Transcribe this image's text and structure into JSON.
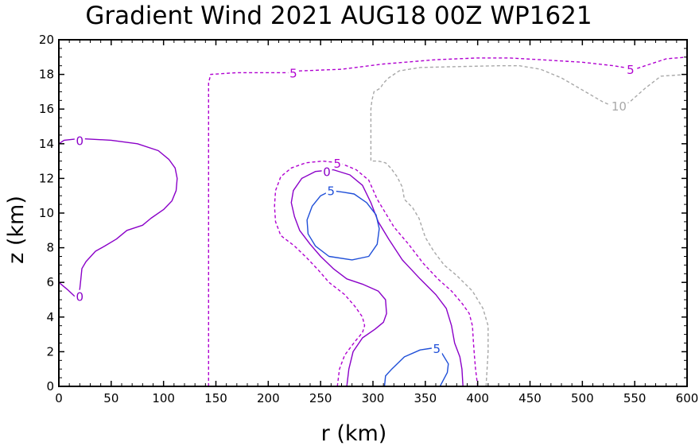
{
  "chart_data": {
    "type": "contour",
    "title": "Gradient Wind 2021 AUG18 00Z  WP1621",
    "xlabel": "r (km)",
    "ylabel": "z (km)",
    "xlim": [
      0,
      600
    ],
    "ylim": [
      0,
      20
    ],
    "xticks": [
      "0",
      "50",
      "100",
      "150",
      "200",
      "250",
      "300",
      "350",
      "400",
      "450",
      "500",
      "550",
      "600"
    ],
    "yticks": [
      "0",
      "2",
      "4",
      "6",
      "8",
      "10",
      "12",
      "14",
      "16",
      "18",
      "20"
    ],
    "grid": false,
    "colors": {
      "positive": "#1f4fd8",
      "zero": "#8a00c8",
      "neg5": "#b000d0",
      "neg10": "#a8a8a8"
    },
    "contours": [
      {
        "level": 0,
        "label": "0",
        "style": "solid",
        "color": "#8a00c8",
        "points": [
          [
            0,
            14.0
          ],
          [
            5,
            14.2
          ],
          [
            20,
            14.3
          ],
          [
            50,
            14.2
          ],
          [
            75,
            14.0
          ],
          [
            95,
            13.6
          ],
          [
            105,
            13.1
          ],
          [
            111,
            12.6
          ],
          [
            113,
            12.0
          ],
          [
            112,
            11.3
          ],
          [
            108,
            10.7
          ],
          [
            100,
            10.2
          ],
          [
            88,
            9.7
          ],
          [
            80,
            9.3
          ],
          [
            65,
            9.0
          ],
          [
            55,
            8.5
          ],
          [
            44,
            8.1
          ],
          [
            35,
            7.8
          ],
          [
            26,
            7.2
          ],
          [
            22,
            6.8
          ],
          [
            21,
            6.2
          ],
          [
            20,
            5.6
          ],
          [
            18,
            5.3
          ],
          [
            15,
            5.2
          ],
          [
            8,
            5.6
          ],
          [
            0,
            6.0
          ]
        ]
      },
      {
        "level": 0,
        "label": "0",
        "style": "solid",
        "color": "#8a00c8",
        "points": [
          [
            275,
            0
          ],
          [
            277,
            1.0
          ],
          [
            281,
            2.0
          ],
          [
            290,
            2.8
          ],
          [
            302,
            3.3
          ],
          [
            310,
            3.7
          ],
          [
            313,
            4.2
          ],
          [
            312,
            5.0
          ],
          [
            305,
            5.5
          ],
          [
            290,
            5.9
          ],
          [
            275,
            6.2
          ],
          [
            262,
            6.8
          ],
          [
            250,
            7.5
          ],
          [
            240,
            8.2
          ],
          [
            230,
            9.0
          ],
          [
            225,
            9.8
          ],
          [
            222,
            10.6
          ],
          [
            224,
            11.3
          ],
          [
            232,
            12.0
          ],
          [
            245,
            12.4
          ],
          [
            262,
            12.5
          ],
          [
            278,
            12.2
          ],
          [
            290,
            11.6
          ],
          [
            298,
            10.6
          ],
          [
            305,
            9.5
          ],
          [
            315,
            8.5
          ],
          [
            328,
            7.3
          ],
          [
            345,
            6.2
          ],
          [
            360,
            5.3
          ],
          [
            370,
            4.5
          ],
          [
            375,
            3.5
          ],
          [
            378,
            2.5
          ],
          [
            383,
            1.7
          ],
          [
            385,
            1.0
          ],
          [
            386,
            0
          ]
        ]
      },
      {
        "level": 5,
        "label": "5",
        "style": "solid",
        "color": "#1f4fd8",
        "points": [
          [
            272,
            11.2
          ],
          [
            260,
            11.3
          ],
          [
            250,
            11.0
          ],
          [
            242,
            10.4
          ],
          [
            237,
            9.6
          ],
          [
            238,
            8.8
          ],
          [
            245,
            8.1
          ],
          [
            258,
            7.5
          ],
          [
            280,
            7.3
          ],
          [
            296,
            7.5
          ],
          [
            304,
            8.2
          ],
          [
            306,
            9.1
          ],
          [
            303,
            9.9
          ],
          [
            294,
            10.6
          ],
          [
            282,
            11.1
          ],
          [
            272,
            11.2
          ]
        ]
      },
      {
        "level": 5,
        "label": "5",
        "style": "solid",
        "color": "#1f4fd8",
        "points": [
          [
            311,
            0
          ],
          [
            312,
            0.6
          ],
          [
            318,
            1.0
          ],
          [
            330,
            1.7
          ],
          [
            345,
            2.1
          ],
          [
            356,
            2.2
          ],
          [
            366,
            1.9
          ],
          [
            372,
            1.3
          ],
          [
            371,
            0.8
          ],
          [
            364,
            0
          ]
        ]
      },
      {
        "level": -5,
        "label": "5",
        "style": "dashed",
        "color": "#b000d0",
        "points": [
          [
            143,
            0
          ],
          [
            143,
            3
          ],
          [
            143,
            6
          ],
          [
            143,
            10
          ],
          [
            143,
            14
          ],
          [
            143,
            16
          ],
          [
            143,
            17.5
          ],
          [
            145,
            18.0
          ],
          [
            170,
            18.1
          ],
          [
            200,
            18.1
          ],
          [
            220,
            18.1
          ],
          [
            230,
            18.2
          ],
          [
            270,
            18.3
          ],
          [
            310,
            18.6
          ],
          [
            360,
            18.85
          ],
          [
            400,
            18.95
          ],
          [
            430,
            18.95
          ],
          [
            460,
            18.85
          ],
          [
            500,
            18.7
          ],
          [
            530,
            18.5
          ],
          [
            550,
            18.3
          ],
          [
            560,
            18.5
          ],
          [
            580,
            18.9
          ],
          [
            600,
            19.0
          ]
        ]
      },
      {
        "level": -5,
        "label": "5",
        "style": "dashed",
        "color": "#b000d0",
        "points": [
          [
            266,
            0
          ],
          [
            268,
            1.0
          ],
          [
            273,
            1.8
          ],
          [
            283,
            2.6
          ],
          [
            290,
            3.1
          ],
          [
            292,
            3.5
          ],
          [
            290,
            4.0
          ],
          [
            283,
            4.6
          ],
          [
            273,
            5.3
          ],
          [
            258,
            6.0
          ],
          [
            248,
            6.7
          ],
          [
            237,
            7.4
          ],
          [
            225,
            8.1
          ],
          [
            212,
            8.7
          ],
          [
            207,
            9.5
          ],
          [
            206,
            10.4
          ],
          [
            207,
            11.3
          ],
          [
            212,
            12.1
          ],
          [
            222,
            12.6
          ],
          [
            236,
            12.9
          ],
          [
            252,
            13.0
          ],
          [
            268,
            12.9
          ],
          [
            284,
            12.5
          ],
          [
            296,
            11.9
          ],
          [
            304,
            10.8
          ],
          [
            312,
            10.0
          ],
          [
            320,
            9.2
          ],
          [
            334,
            8.2
          ],
          [
            348,
            7.1
          ],
          [
            362,
            6.2
          ],
          [
            375,
            5.5
          ],
          [
            385,
            4.8
          ],
          [
            392,
            4.2
          ],
          [
            395,
            3.5
          ],
          [
            396,
            2.5
          ],
          [
            397,
            1.7
          ],
          [
            398,
            1.0
          ],
          [
            400,
            0
          ]
        ]
      },
      {
        "level": -10,
        "label": "10",
        "style": "dashed",
        "color": "#a8a8a8",
        "points": [
          [
            408,
            0
          ],
          [
            409,
            1.0
          ],
          [
            410,
            2.0
          ],
          [
            410,
            3.0
          ],
          [
            410,
            3.5
          ],
          [
            405,
            4.5
          ],
          [
            395,
            5.5
          ],
          [
            380,
            6.4
          ],
          [
            368,
            7.0
          ],
          [
            358,
            7.8
          ],
          [
            350,
            8.6
          ],
          [
            344,
            9.7
          ],
          [
            338,
            10.3
          ],
          [
            330,
            10.8
          ],
          [
            328,
            11.5
          ],
          [
            323,
            12.1
          ],
          [
            317,
            12.6
          ],
          [
            312,
            12.9
          ],
          [
            305,
            13.0
          ],
          [
            298,
            13.0
          ],
          [
            298,
            14.0
          ],
          [
            298,
            15.0
          ],
          [
            298,
            16.0
          ],
          [
            299,
            16.5
          ],
          [
            301,
            17.0
          ],
          [
            307,
            17.2
          ],
          [
            310,
            17.5
          ],
          [
            315,
            17.8
          ],
          [
            325,
            18.2
          ],
          [
            345,
            18.4
          ],
          [
            380,
            18.45
          ],
          [
            420,
            18.5
          ],
          [
            440,
            18.5
          ],
          [
            460,
            18.3
          ],
          [
            480,
            17.8
          ],
          [
            500,
            17.1
          ],
          [
            520,
            16.4
          ],
          [
            532,
            16.1
          ],
          [
            545,
            16.4
          ],
          [
            560,
            17.2
          ],
          [
            575,
            17.9
          ],
          [
            600,
            18.0
          ]
        ]
      }
    ],
    "contour_labels": [
      {
        "text": "0",
        "x": 20,
        "y": 14.2,
        "color": "#8a00c8"
      },
      {
        "text": "0",
        "x": 20,
        "y": 5.2,
        "color": "#8a00c8"
      },
      {
        "text": "0",
        "x": 256,
        "y": 12.4,
        "color": "#8a00c8"
      },
      {
        "text": "5",
        "x": 260,
        "y": 11.3,
        "color": "#1f4fd8"
      },
      {
        "text": "5",
        "x": 361,
        "y": 2.2,
        "color": "#1f4fd8"
      },
      {
        "text": "5",
        "x": 224,
        "y": 18.1,
        "color": "#b000d0"
      },
      {
        "text": "5",
        "x": 266,
        "y": 12.9,
        "color": "#b000d0"
      },
      {
        "text": "5",
        "x": 546,
        "y": 18.3,
        "color": "#b000d0"
      },
      {
        "text": "10",
        "x": 535,
        "y": 16.2,
        "color": "#a8a8a8"
      }
    ]
  }
}
